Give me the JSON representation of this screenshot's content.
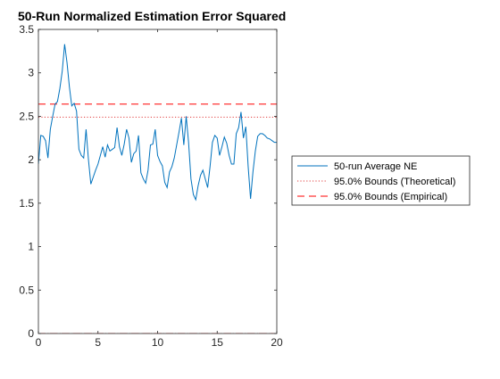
{
  "chart_data": {
    "type": "line",
    "title": "50-Run Normalized Estimation Error Squared",
    "xlabel": "",
    "ylabel": "",
    "xlim": [
      0,
      20
    ],
    "ylim": [
      0,
      3.5
    ],
    "xticks": [
      0,
      5,
      10,
      15,
      20
    ],
    "xtick_labels": [
      "0",
      "5",
      "10",
      "15",
      "20"
    ],
    "yticks": [
      0,
      0.5,
      1,
      1.5,
      2,
      2.5,
      3,
      3.5
    ],
    "ytick_labels": [
      "0",
      "0.5",
      "1",
      "1.5",
      "2",
      "2.5",
      "3",
      "3.5"
    ],
    "grid": false,
    "legend_position": "outside-right",
    "series": [
      {
        "name": "50-run Average NE",
        "color": "#0072bd",
        "style": "solid",
        "x": [
          0,
          0.2,
          0.4,
          0.6,
          0.8,
          1.0,
          1.2,
          1.4,
          1.6,
          1.8,
          2.0,
          2.2,
          2.4,
          2.6,
          2.8,
          3.0,
          3.2,
          3.4,
          3.6,
          3.8,
          4.0,
          4.2,
          4.4,
          4.6,
          4.8,
          5.0,
          5.2,
          5.4,
          5.6,
          5.8,
          6.0,
          6.2,
          6.4,
          6.6,
          6.8,
          7.0,
          7.2,
          7.4,
          7.6,
          7.8,
          8.0,
          8.2,
          8.4,
          8.6,
          8.8,
          9.0,
          9.2,
          9.4,
          9.6,
          9.8,
          10.0,
          10.2,
          10.4,
          10.6,
          10.8,
          11.0,
          11.2,
          11.4,
          11.6,
          11.8,
          12.0,
          12.2,
          12.4,
          12.6,
          12.8,
          13.0,
          13.2,
          13.4,
          13.6,
          13.8,
          14.0,
          14.2,
          14.4,
          14.6,
          14.8,
          15.0,
          15.2,
          15.4,
          15.6,
          15.8,
          16.0,
          16.2,
          16.4,
          16.6,
          16.8,
          17.0,
          17.2,
          17.4,
          17.6,
          17.8,
          18.0,
          18.2,
          18.4,
          18.6,
          18.8,
          19.0,
          19.2,
          19.4,
          19.6,
          19.8,
          20.0
        ],
        "y": [
          1.95,
          2.28,
          2.27,
          2.22,
          2.02,
          2.35,
          2.5,
          2.64,
          2.67,
          2.82,
          3.02,
          3.33,
          3.12,
          2.84,
          2.62,
          2.65,
          2.56,
          2.12,
          2.05,
          2.02,
          2.35,
          2.0,
          1.72,
          1.8,
          1.88,
          1.95,
          2.05,
          2.15,
          2.03,
          2.17,
          2.1,
          2.12,
          2.14,
          2.37,
          2.15,
          2.05,
          2.18,
          2.35,
          2.25,
          1.97,
          2.07,
          2.1,
          2.28,
          1.85,
          1.78,
          1.73,
          1.88,
          2.17,
          2.18,
          2.35,
          2.05,
          1.98,
          1.93,
          1.74,
          1.68,
          1.86,
          1.92,
          2.02,
          2.17,
          2.32,
          2.48,
          2.17,
          2.5,
          2.2,
          1.78,
          1.6,
          1.54,
          1.7,
          1.82,
          1.88,
          1.78,
          1.68,
          1.92,
          2.2,
          2.28,
          2.25,
          2.05,
          2.15,
          2.26,
          2.19,
          2.05,
          1.95,
          1.95,
          2.3,
          2.37,
          2.55,
          2.25,
          2.38,
          1.92,
          1.55,
          1.86,
          2.1,
          2.27,
          2.3,
          2.3,
          2.28,
          2.25,
          2.24,
          2.22,
          2.2,
          2.2
        ]
      },
      {
        "name": "95.0% Bounds (Theoretical)",
        "color": "#e03c3c",
        "style": "dotted",
        "upper": 2.49,
        "lower": 0.0
      },
      {
        "name": "95.0% Bounds (Empirical)",
        "color": "#ff0000",
        "style": "dashed",
        "upper": 2.64,
        "lower": 0.0
      }
    ]
  }
}
